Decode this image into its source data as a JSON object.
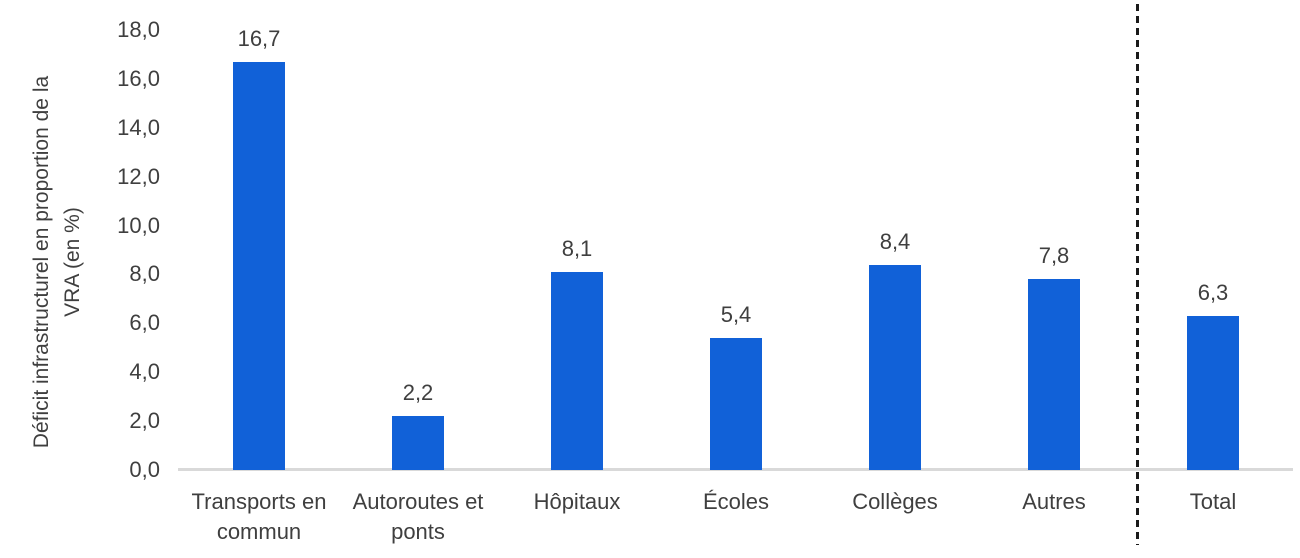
{
  "chart_data": {
    "type": "bar",
    "title": "",
    "xlabel": "",
    "ylabel": "Déficit infrastructurel en proportion de la VRA (en %)",
    "ylabel_lines": [
      "Déficit infrastructurel en proportion de la",
      "VRA (en %)"
    ],
    "ylim": [
      0,
      18
    ],
    "y_tick_step": 2,
    "y_tick_labels": [
      "0,0",
      "2,0",
      "4,0",
      "6,0",
      "8,0",
      "10,0",
      "12,0",
      "14,0",
      "16,0",
      "18,0"
    ],
    "categories": [
      "Transports en commun",
      "Autoroutes et ponts",
      "Hôpitaux",
      "Écoles",
      "Collèges",
      "Autres",
      "Total"
    ],
    "values": [
      16.7,
      2.2,
      8.1,
      5.4,
      8.4,
      7.8,
      6.3
    ],
    "value_labels": [
      "16,7",
      "2,2",
      "8,1",
      "5,4",
      "8,4",
      "7,8",
      "6,3"
    ],
    "separator_before_category": "Total",
    "grid": false,
    "legend": false,
    "colors": {
      "bar": "#1161d8",
      "axis_line": "#d9d9d9",
      "text": "#3f3f3f",
      "separator": "#1a1a1a",
      "background": "#ffffff"
    }
  }
}
